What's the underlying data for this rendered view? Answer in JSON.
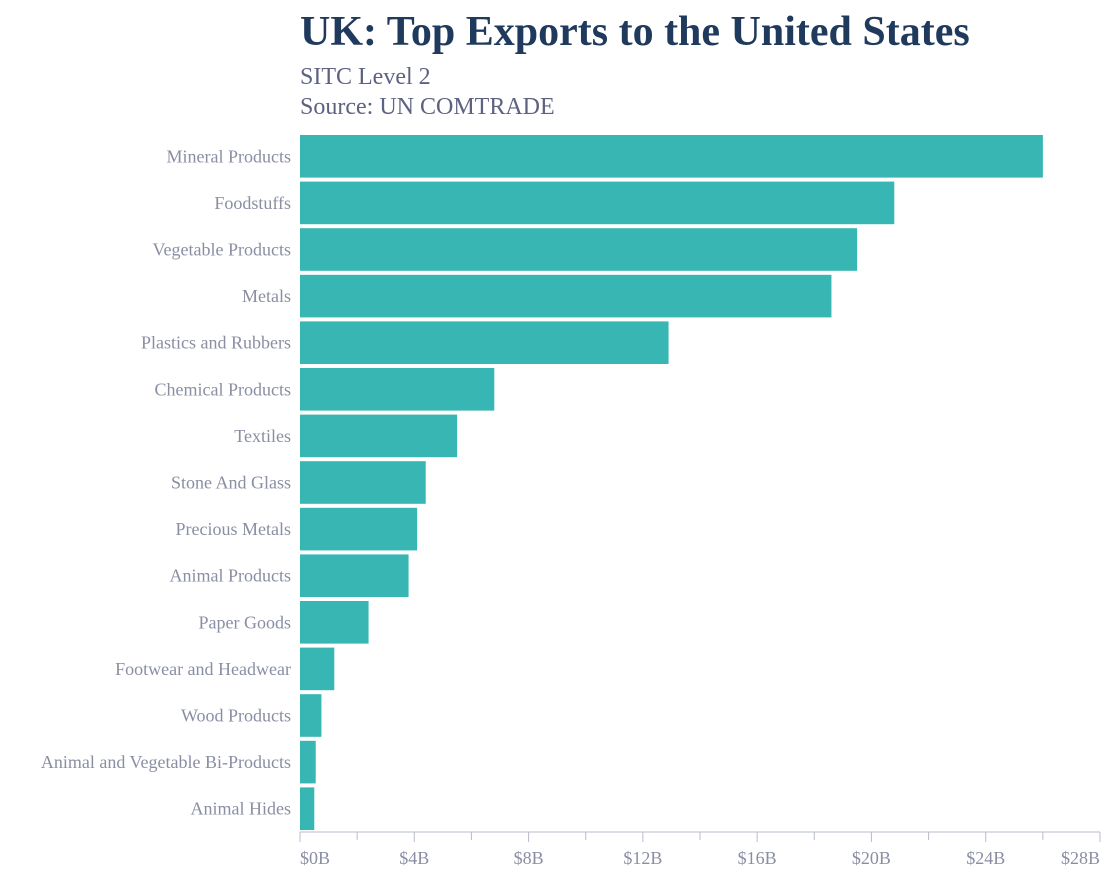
{
  "colors": {
    "bar": "#37b6b3",
    "title": "#1f3a5c",
    "subtitle": "#5d6282",
    "axis": "#8a8ea3",
    "axis_line": "#b9bccb"
  },
  "chart_data": {
    "type": "bar",
    "orientation": "horizontal",
    "title": "UK: Top Exports to the United States",
    "subtitles": [
      "SITC Level 2",
      "Source: UN COMTRADE"
    ],
    "categories": [
      "Mineral Products",
      "Foodstuffs",
      "Vegetable Products",
      "Metals",
      "Plastics and Rubbers",
      "Chemical Products",
      "Textiles",
      "Stone And Glass",
      "Precious Metals",
      "Animal Products",
      "Paper Goods",
      "Footwear and Headwear",
      "Wood Products",
      "Animal and Vegetable Bi-Products",
      "Animal Hides"
    ],
    "values": [
      26.0,
      20.8,
      19.5,
      18.6,
      12.9,
      6.8,
      5.5,
      4.4,
      4.1,
      3.8,
      2.4,
      1.2,
      0.75,
      0.55,
      0.5
    ],
    "unit": "billions USD",
    "xlim": [
      0,
      28
    ],
    "xticks": [
      0,
      4,
      8,
      12,
      16,
      20,
      24,
      28
    ],
    "xtick_labels": [
      "$0B",
      "$4B",
      "$8B",
      "$12B",
      "$16B",
      "$20B",
      "$24B",
      "$28B"
    ],
    "xlabel": "",
    "ylabel": "",
    "grid": false,
    "legend": "none"
  }
}
